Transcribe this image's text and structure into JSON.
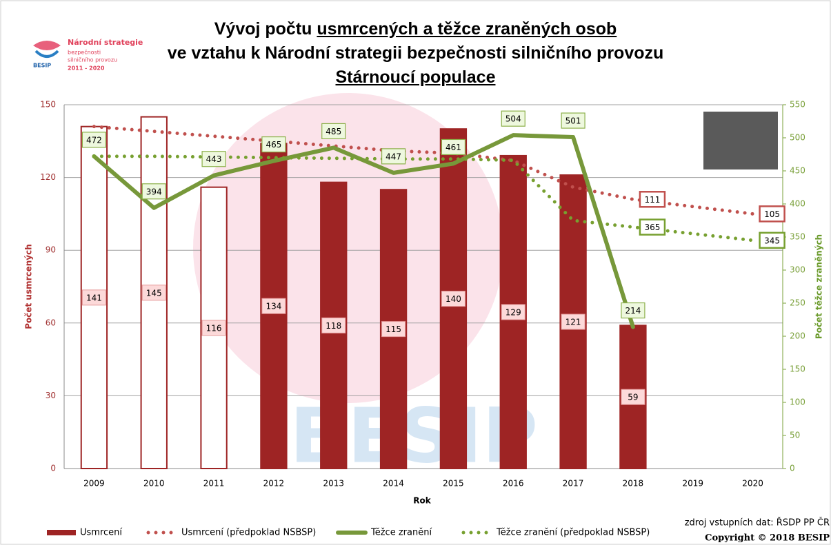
{
  "chart_data": {
    "type": "combo",
    "title": [
      "Vývoj počtu",
      "usmrcených a těžce zraněných osob",
      "ve vztahu k Národní strategii bezpečnosti silničního provozu"
    ],
    "subtitle": "Stárnoucí populace",
    "logo": {
      "lines": [
        "Národní strategie",
        "bezpečnosti",
        "silničního provozu",
        "2011 - 2020"
      ],
      "brand": "BESIP"
    },
    "x_label": "Rok",
    "y_label": "Počet usmrcených",
    "y2_label": "Počet těžce zraněných",
    "categories": [
      "2009",
      "2010",
      "2011",
      "2012",
      "2013",
      "2014",
      "2015",
      "2016",
      "2017",
      "2018",
      "2019",
      "2020"
    ],
    "ylim": [
      0,
      150
    ],
    "yticks": [
      0,
      30,
      60,
      90,
      120,
      150
    ],
    "y2lim": [
      0,
      550
    ],
    "y2ticks": [
      0,
      50,
      100,
      150,
      200,
      250,
      300,
      350,
      400,
      450,
      500,
      550
    ],
    "grid": true,
    "series": [
      {
        "name": "Usmrcení",
        "type": "bar",
        "color": "#9e2424",
        "bar_fills": [
          "#ffffff",
          "#ffffff",
          "#ffffff",
          "#9e2424",
          "#9e2424",
          "#9e2424",
          "#9e2424",
          "#9e2424",
          "#9e2424",
          "#9e2424",
          null,
          null
        ],
        "values": [
          141,
          145,
          116,
          134,
          118,
          115,
          140,
          129,
          121,
          59,
          null,
          null
        ]
      },
      {
        "name": "Usmrcení (předpoklad NSBSP)",
        "type": "line",
        "style": "dotted",
        "color": "#c0504d",
        "values": [
          141,
          139,
          137,
          135,
          133,
          131,
          130,
          127,
          116,
          111,
          108,
          105
        ],
        "labeled": [
          9,
          11
        ]
      },
      {
        "name": "Těžce zranění",
        "type": "line",
        "style": "solid",
        "axis": "y2",
        "color": "#77983a",
        "values": [
          472,
          394,
          443,
          465,
          485,
          447,
          461,
          504,
          501,
          214,
          null,
          null
        ]
      },
      {
        "name": "Těžce zranění (předpoklad NSBSP)",
        "type": "line",
        "style": "dotted",
        "axis": "y2",
        "color": "#77a030",
        "values": [
          472,
          472,
          471,
          470,
          469,
          468,
          468,
          466,
          375,
          365,
          355,
          345
        ],
        "labeled": [
          9,
          11
        ]
      }
    ],
    "source": "zdroj vstupních dat: ŘSDP PP ČR",
    "copyright": "Copyright © 2018 BESIP"
  }
}
